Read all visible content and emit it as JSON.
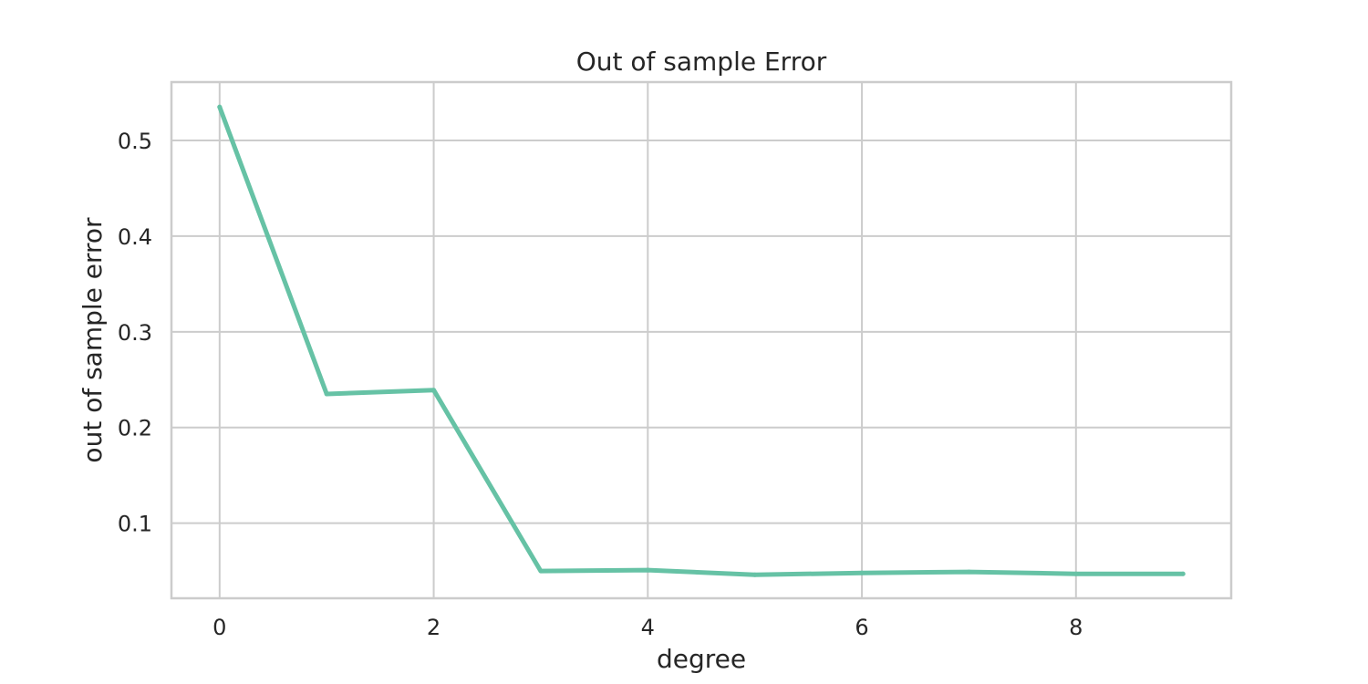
{
  "chart_data": {
    "type": "line",
    "title": "Out of sample Error",
    "xlabel": "degree",
    "ylabel": "out of sample error",
    "xlim": [
      -0.45,
      9.45
    ],
    "ylim": [
      0.0215,
      0.561
    ],
    "x_ticks": [
      0,
      2,
      4,
      6,
      8
    ],
    "x_tick_labels": [
      "0",
      "2",
      "4",
      "6",
      "8"
    ],
    "y_ticks": [
      0.1,
      0.2,
      0.3,
      0.4,
      0.5
    ],
    "y_tick_labels": [
      "0.1",
      "0.2",
      "0.3",
      "0.4",
      "0.5"
    ],
    "grid": true,
    "series": [
      {
        "color": "#66c2a5",
        "x": [
          0,
          1,
          2,
          3,
          4,
          5,
          6,
          7,
          8,
          9
        ],
        "values": [
          0.535,
          0.235,
          0.239,
          0.05,
          0.051,
          0.046,
          0.048,
          0.049,
          0.047,
          0.047
        ]
      }
    ]
  }
}
